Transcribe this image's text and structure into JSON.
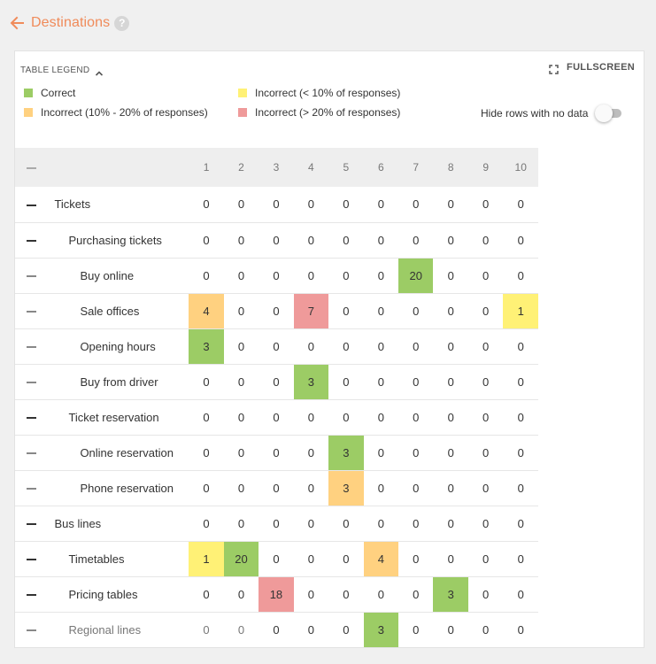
{
  "header": {
    "title": "Destinations",
    "help_glyph": "?"
  },
  "legend": {
    "toggle_label": "TABLE LEGEND",
    "items": [
      {
        "label": "Correct",
        "color": "#9ccc65"
      },
      {
        "label": "Incorrect (< 10% of responses)",
        "color": "#fff176"
      },
      {
        "label": "Incorrect (10% - 20% of responses)",
        "color": "#ffd180"
      },
      {
        "label": "Incorrect (> 20% of responses)",
        "color": "#ef9a9a"
      }
    ]
  },
  "toolbar": {
    "fullscreen_label": "FULLSCREEN",
    "hide_rows_label": "Hide rows with no data",
    "hide_rows_enabled": false
  },
  "table": {
    "columns": [
      "1",
      "2",
      "3",
      "4",
      "5",
      "6",
      "7",
      "8",
      "9",
      "10"
    ],
    "rows": [
      {
        "label": "Tickets",
        "level": 0,
        "values": [
          "0",
          "0",
          "0",
          "0",
          "0",
          "0",
          "0",
          "0",
          "0",
          "0"
        ],
        "colors": [
          null,
          null,
          null,
          null,
          null,
          null,
          null,
          null,
          null,
          null
        ]
      },
      {
        "label": "Purchasing tickets",
        "level": 1,
        "values": [
          "0",
          "0",
          "0",
          "0",
          "0",
          "0",
          "0",
          "0",
          "0",
          "0"
        ],
        "colors": [
          null,
          null,
          null,
          null,
          null,
          null,
          null,
          null,
          null,
          null
        ]
      },
      {
        "label": "Buy online",
        "level": 2,
        "values": [
          "0",
          "0",
          "0",
          "0",
          "0",
          "0",
          "20",
          "0",
          "0",
          "0"
        ],
        "colors": [
          null,
          null,
          null,
          null,
          null,
          null,
          "#9ccc65",
          null,
          null,
          null
        ]
      },
      {
        "label": "Sale offices",
        "level": 2,
        "values": [
          "4",
          "0",
          "0",
          "7",
          "0",
          "0",
          "0",
          "0",
          "0",
          "1"
        ],
        "colors": [
          "#ffd180",
          null,
          null,
          "#ef9a9a",
          null,
          null,
          null,
          null,
          null,
          "#fff176"
        ]
      },
      {
        "label": "Opening hours",
        "level": 2,
        "values": [
          "3",
          "0",
          "0",
          "0",
          "0",
          "0",
          "0",
          "0",
          "0",
          "0"
        ],
        "colors": [
          "#9ccc65",
          null,
          null,
          null,
          null,
          null,
          null,
          null,
          null,
          null
        ]
      },
      {
        "label": "Buy from driver",
        "level": 2,
        "values": [
          "0",
          "0",
          "0",
          "3",
          "0",
          "0",
          "0",
          "0",
          "0",
          "0"
        ],
        "colors": [
          null,
          null,
          null,
          "#9ccc65",
          null,
          null,
          null,
          null,
          null,
          null
        ]
      },
      {
        "label": "Ticket reservation",
        "level": 1,
        "values": [
          "0",
          "0",
          "0",
          "0",
          "0",
          "0",
          "0",
          "0",
          "0",
          "0"
        ],
        "colors": [
          null,
          null,
          null,
          null,
          null,
          null,
          null,
          null,
          null,
          null
        ]
      },
      {
        "label": "Online reservation",
        "level": 2,
        "values": [
          "0",
          "0",
          "0",
          "0",
          "3",
          "0",
          "0",
          "0",
          "0",
          "0"
        ],
        "colors": [
          null,
          null,
          null,
          null,
          "#9ccc65",
          null,
          null,
          null,
          null,
          null
        ]
      },
      {
        "label": "Phone reservation",
        "level": 2,
        "values": [
          "0",
          "0",
          "0",
          "0",
          "3",
          "0",
          "0",
          "0",
          "0",
          "0"
        ],
        "colors": [
          null,
          null,
          null,
          null,
          "#ffd180",
          null,
          null,
          null,
          null,
          null
        ]
      },
      {
        "label": "Bus lines",
        "level": 0,
        "values": [
          "0",
          "0",
          "0",
          "0",
          "0",
          "0",
          "0",
          "0",
          "0",
          "0"
        ],
        "colors": [
          null,
          null,
          null,
          null,
          null,
          null,
          null,
          null,
          null,
          null
        ]
      },
      {
        "label": "Timetables",
        "level": 1,
        "values": [
          "1",
          "20",
          "0",
          "0",
          "0",
          "4",
          "0",
          "0",
          "0",
          "0"
        ],
        "colors": [
          "#fff176",
          "#9ccc65",
          null,
          null,
          null,
          "#ffd180",
          null,
          null,
          null,
          null
        ]
      },
      {
        "label": "Pricing tables",
        "level": 1,
        "values": [
          "0",
          "0",
          "18",
          "0",
          "0",
          "0",
          "0",
          "3",
          "0",
          "0"
        ],
        "colors": [
          null,
          null,
          "#ef9a9a",
          null,
          null,
          null,
          null,
          "#9ccc65",
          null,
          null
        ]
      },
      {
        "label": "Regional lines",
        "level": 1,
        "muted": true,
        "values": [
          "0",
          "0",
          "0",
          "0",
          "0",
          "3",
          "0",
          "0",
          "0",
          "0"
        ],
        "colors": [
          null,
          null,
          null,
          null,
          null,
          "#9ccc65",
          null,
          null,
          null,
          null
        ]
      }
    ]
  }
}
